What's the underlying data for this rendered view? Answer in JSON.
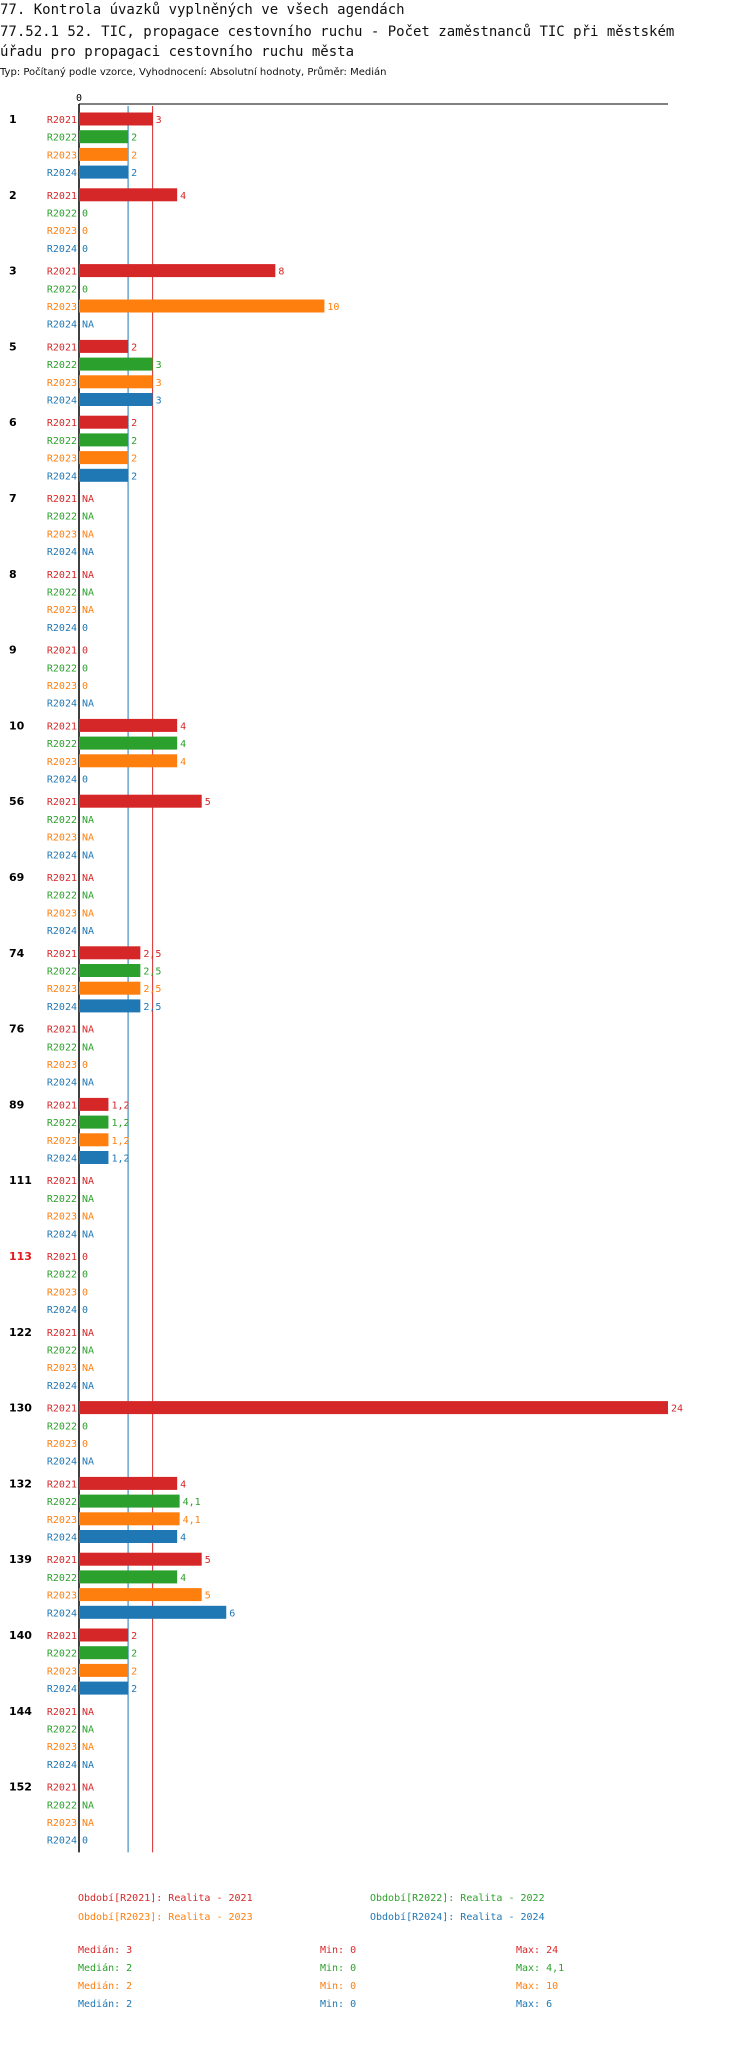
{
  "header": {
    "title_line1": "77. Kontrola úvazků vyplněných ve všech agendách",
    "title_line2": "77.52.1 52. TIC, propagace cestovního ruchu - Počet zaměstnanců TIC při městském",
    "title_line3": "úřadu pro propagaci cestovního ruchu města",
    "subtitle": "Typ: Počítaný podle vzorce, Vyhodnocení: Absolutní hodnoty, Průměr: Medián"
  },
  "colors": {
    "R2021": "#d62728",
    "R2022": "#2ca02c",
    "R2023": "#ff7f0e",
    "R2024": "#1f77b4",
    "highlight_group": "#e41a1c",
    "axis": "#000000"
  },
  "chart_data": {
    "type": "bar",
    "orientation": "horizontal",
    "x_tick_labels": [
      "0"
    ],
    "periods": [
      "R2021",
      "R2022",
      "R2023",
      "R2024"
    ],
    "groups": [
      {
        "label": "1",
        "values": [
          3,
          2,
          2,
          2
        ],
        "labels": [
          "3",
          "2",
          "2",
          "2"
        ]
      },
      {
        "label": "2",
        "values": [
          4,
          0,
          0,
          0
        ],
        "labels": [
          "4",
          "0",
          "0",
          "0"
        ]
      },
      {
        "label": "3",
        "values": [
          8,
          0,
          10,
          null
        ],
        "labels": [
          "8",
          "0",
          "10",
          "NA"
        ]
      },
      {
        "label": "5",
        "values": [
          2,
          3,
          3,
          3
        ],
        "labels": [
          "2",
          "3",
          "3",
          "3"
        ]
      },
      {
        "label": "6",
        "values": [
          2,
          2,
          2,
          2
        ],
        "labels": [
          "2",
          "2",
          "2",
          "2"
        ]
      },
      {
        "label": "7",
        "values": [
          null,
          null,
          null,
          null
        ],
        "labels": [
          "NA",
          "NA",
          "NA",
          "NA"
        ]
      },
      {
        "label": "8",
        "values": [
          null,
          null,
          null,
          0
        ],
        "labels": [
          "NA",
          "NA",
          "NA",
          "0"
        ]
      },
      {
        "label": "9",
        "values": [
          0,
          0,
          0,
          null
        ],
        "labels": [
          "0",
          "0",
          "0",
          "NA"
        ]
      },
      {
        "label": "10",
        "values": [
          4,
          4,
          4,
          0
        ],
        "labels": [
          "4",
          "4",
          "4",
          "0"
        ]
      },
      {
        "label": "56",
        "values": [
          5,
          null,
          null,
          null
        ],
        "labels": [
          "5",
          "NA",
          "NA",
          "NA"
        ]
      },
      {
        "label": "69",
        "values": [
          null,
          null,
          null,
          null
        ],
        "labels": [
          "NA",
          "NA",
          "NA",
          "NA"
        ]
      },
      {
        "label": "74",
        "values": [
          2.5,
          2.5,
          2.5,
          2.5
        ],
        "labels": [
          "2,5",
          "2,5",
          "2,5",
          "2,5"
        ]
      },
      {
        "label": "76",
        "values": [
          null,
          null,
          0,
          null
        ],
        "labels": [
          "NA",
          "NA",
          "0",
          "NA"
        ]
      },
      {
        "label": "89",
        "values": [
          1.2,
          1.2,
          1.2,
          1.2
        ],
        "labels": [
          "1,2",
          "1,2",
          "1,2",
          "1,2"
        ]
      },
      {
        "label": "111",
        "values": [
          null,
          null,
          null,
          null
        ],
        "labels": [
          "NA",
          "NA",
          "NA",
          "NA"
        ]
      },
      {
        "label": "113",
        "values": [
          0,
          0,
          0,
          0
        ],
        "labels": [
          "0",
          "0",
          "0",
          "0"
        ],
        "highlight": true
      },
      {
        "label": "122",
        "values": [
          null,
          null,
          null,
          null
        ],
        "labels": [
          "NA",
          "NA",
          "NA",
          "NA"
        ]
      },
      {
        "label": "130",
        "values": [
          24,
          0,
          0,
          null
        ],
        "labels": [
          "24",
          "0",
          "0",
          "NA"
        ]
      },
      {
        "label": "132",
        "values": [
          4,
          4.1,
          4.1,
          4
        ],
        "labels": [
          "4",
          "4,1",
          "4,1",
          "4"
        ]
      },
      {
        "label": "139",
        "values": [
          5,
          4,
          5,
          6
        ],
        "labels": [
          "5",
          "4",
          "5",
          "6"
        ]
      },
      {
        "label": "140",
        "values": [
          2,
          2,
          2,
          2
        ],
        "labels": [
          "2",
          "2",
          "2",
          "2"
        ]
      },
      {
        "label": "144",
        "values": [
          null,
          null,
          null,
          null
        ],
        "labels": [
          "NA",
          "NA",
          "NA",
          "NA"
        ]
      },
      {
        "label": "152",
        "values": [
          null,
          null,
          null,
          0
        ],
        "labels": [
          "NA",
          "NA",
          "NA",
          "0"
        ]
      }
    ],
    "xlim": [
      0,
      24
    ],
    "reference_lines": [
      {
        "value": 3,
        "color": "#d62728"
      },
      {
        "value": 2,
        "color": "#1f77b4"
      }
    ]
  },
  "legend": {
    "items": [
      {
        "text": "Období[R2021]: Realita - 2021",
        "color": "#d62728"
      },
      {
        "text": "Období[R2022]: Realita - 2022",
        "color": "#2ca02c"
      },
      {
        "text": "Období[R2023]: Realita - 2023",
        "color": "#ff7f0e"
      },
      {
        "text": "Období[R2024]: Realita - 2024",
        "color": "#1f77b4"
      }
    ]
  },
  "stats": [
    {
      "median": "Medián: 3",
      "min": "Min: 0",
      "max": "Max: 24",
      "color": "#d62728"
    },
    {
      "median": "Medián: 2",
      "min": "Min: 0",
      "max": "Max: 4,1",
      "color": "#2ca02c"
    },
    {
      "median": "Medián: 2",
      "min": "Min: 0",
      "max": "Max: 10",
      "color": "#ff7f0e"
    },
    {
      "median": "Medián: 2",
      "min": "Min: 0",
      "max": "Max: 6",
      "color": "#1f77b4"
    }
  ]
}
